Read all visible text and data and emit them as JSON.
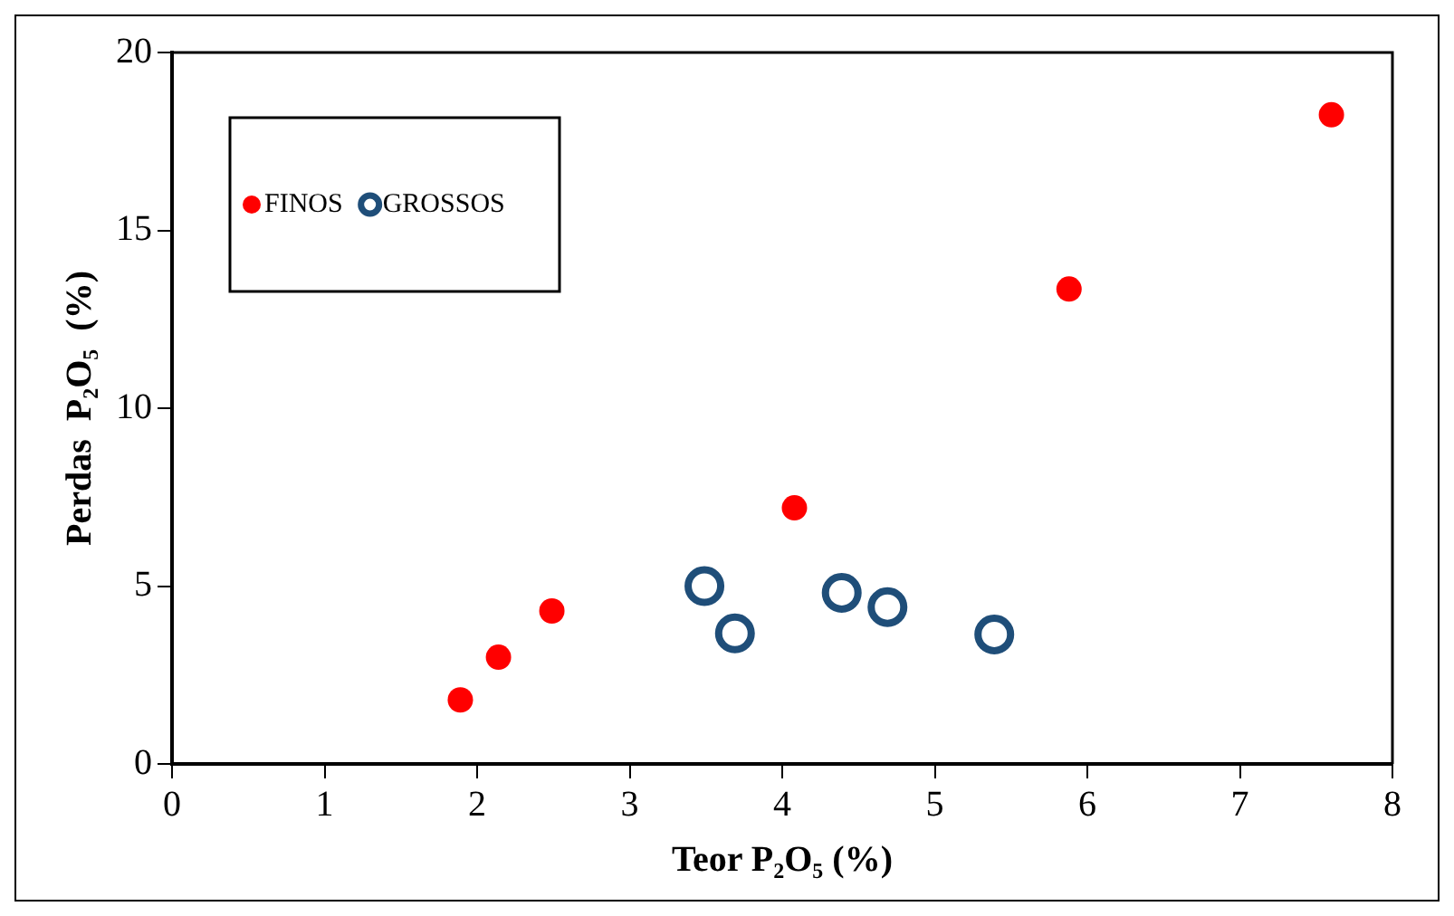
{
  "chart_data": {
    "type": "scatter",
    "xlabel": "Teor P₂O₅ (%)",
    "ylabel": "Perdas  P₂O₅  (%)",
    "series": [
      {
        "name": "FINOS",
        "color": "#ff0000",
        "x": [
          1.89,
          2.14,
          2.49,
          4.08,
          5.88,
          7.6
        ],
        "values": [
          1.8,
          3.0,
          4.3,
          7.2,
          13.35,
          18.25
        ]
      },
      {
        "name": "GROSSOS",
        "color": "#1f4e79",
        "x": [
          3.49,
          3.69,
          4.39,
          4.69,
          5.39
        ],
        "values": [
          5.0,
          3.67,
          4.81,
          4.41,
          3.64
        ]
      }
    ],
    "xlim": [
      0,
      8
    ],
    "xticks": [
      0,
      1,
      2,
      3,
      4,
      5,
      6,
      7,
      8
    ],
    "ylim": [
      0,
      20
    ],
    "yticks": [
      0,
      5,
      10,
      15,
      20
    ],
    "grid": false,
    "legend": "top left",
    "marker": "circle"
  }
}
